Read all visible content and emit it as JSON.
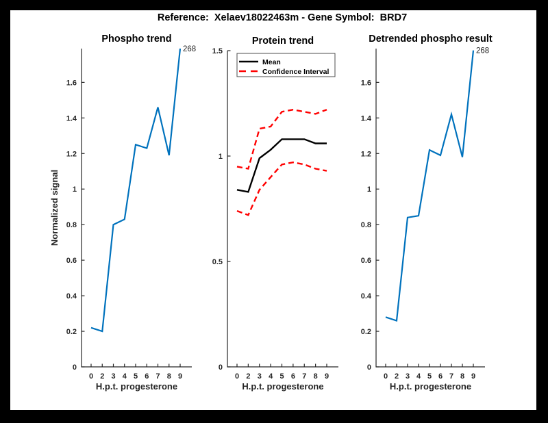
{
  "figure_title": "Reference:  Xelaev18022463m - Gene Symbol:  BRD7",
  "window": {
    "background": "#000000",
    "canvas_background": "#ffffff"
  },
  "colors": {
    "phospho_line": "#0072BD",
    "mean_line": "#000000",
    "confidence_line": "#FF0000",
    "axis": "#262626"
  },
  "chart_data": [
    {
      "type": "line",
      "title": "Phospho trend",
      "xlabel": "H.p.t. progesterone",
      "ylabel": "Normalized signal",
      "x_ticklabels": [
        "0",
        "2",
        "3",
        "4",
        "5",
        "6",
        "7",
        "8",
        "9"
      ],
      "ytick_values": [
        0,
        0.2,
        0.4,
        0.6,
        0.8,
        1.0,
        1.2,
        1.4,
        1.6
      ],
      "ytick_labels": [
        "0",
        "0.2",
        "0.4",
        "0.6",
        "0.8",
        "1",
        "1.2",
        "1.4",
        "1.6"
      ],
      "ylim": [
        0,
        1.79
      ],
      "grid": false,
      "legend": null,
      "series": [
        {
          "name": "phospho-trend",
          "color": "#0072BD",
          "style": "solid",
          "width": 2.2,
          "values": [
            0.22,
            0.2,
            0.8,
            0.83,
            1.25,
            1.23,
            1.46,
            1.19,
            1.79
          ]
        }
      ],
      "end_label": "268"
    },
    {
      "type": "line",
      "title": "Protein trend",
      "xlabel": "H.p.t. progesterone",
      "ylabel": "",
      "x_ticklabels": [
        "0",
        "2",
        "3",
        "4",
        "5",
        "6",
        "7",
        "8",
        "9"
      ],
      "ytick_values": [
        0,
        0.5,
        1.0,
        1.5
      ],
      "ytick_labels": [
        "0",
        "0.5",
        "1",
        "1.5"
      ],
      "ylim": [
        0,
        1.5
      ],
      "grid": false,
      "legend": {
        "position": "northwest",
        "entries": [
          {
            "label": "Mean",
            "color": "#000000",
            "style": "solid"
          },
          {
            "label": "Confidence Interval",
            "color": "#FF0000",
            "style": "dashed"
          }
        ]
      },
      "series": [
        {
          "name": "mean",
          "color": "#000000",
          "style": "solid",
          "width": 2.4,
          "values": [
            0.84,
            0.83,
            0.99,
            1.03,
            1.08,
            1.08,
            1.08,
            1.06,
            1.06
          ]
        },
        {
          "name": "confidence-upper",
          "color": "#FF0000",
          "style": "dashed",
          "width": 2.4,
          "values": [
            0.95,
            0.94,
            1.13,
            1.14,
            1.21,
            1.22,
            1.21,
            1.2,
            1.22
          ]
        },
        {
          "name": "confidence-lower",
          "color": "#FF0000",
          "style": "dashed",
          "width": 2.4,
          "values": [
            0.74,
            0.72,
            0.84,
            0.9,
            0.96,
            0.97,
            0.96,
            0.94,
            0.93
          ]
        }
      ],
      "end_label": null
    },
    {
      "type": "line",
      "title": "Detrended phospho result",
      "xlabel": "H.p.t. progesterone",
      "ylabel": "",
      "x_ticklabels": [
        "0",
        "2",
        "3",
        "4",
        "5",
        "6",
        "7",
        "8",
        "9"
      ],
      "ytick_values": [
        0,
        0.2,
        0.4,
        0.6,
        0.8,
        1.0,
        1.2,
        1.4,
        1.6
      ],
      "ytick_labels": [
        "0",
        "0.2",
        "0.4",
        "0.6",
        "0.8",
        "1",
        "1.2",
        "1.4",
        "1.6"
      ],
      "ylim": [
        0,
        1.79
      ],
      "grid": false,
      "legend": null,
      "series": [
        {
          "name": "detrended-phospho",
          "color": "#0072BD",
          "style": "solid",
          "width": 2.2,
          "values": [
            0.28,
            0.26,
            0.84,
            0.85,
            1.22,
            1.19,
            1.42,
            1.18,
            1.78
          ]
        }
      ],
      "end_label": "268"
    }
  ]
}
